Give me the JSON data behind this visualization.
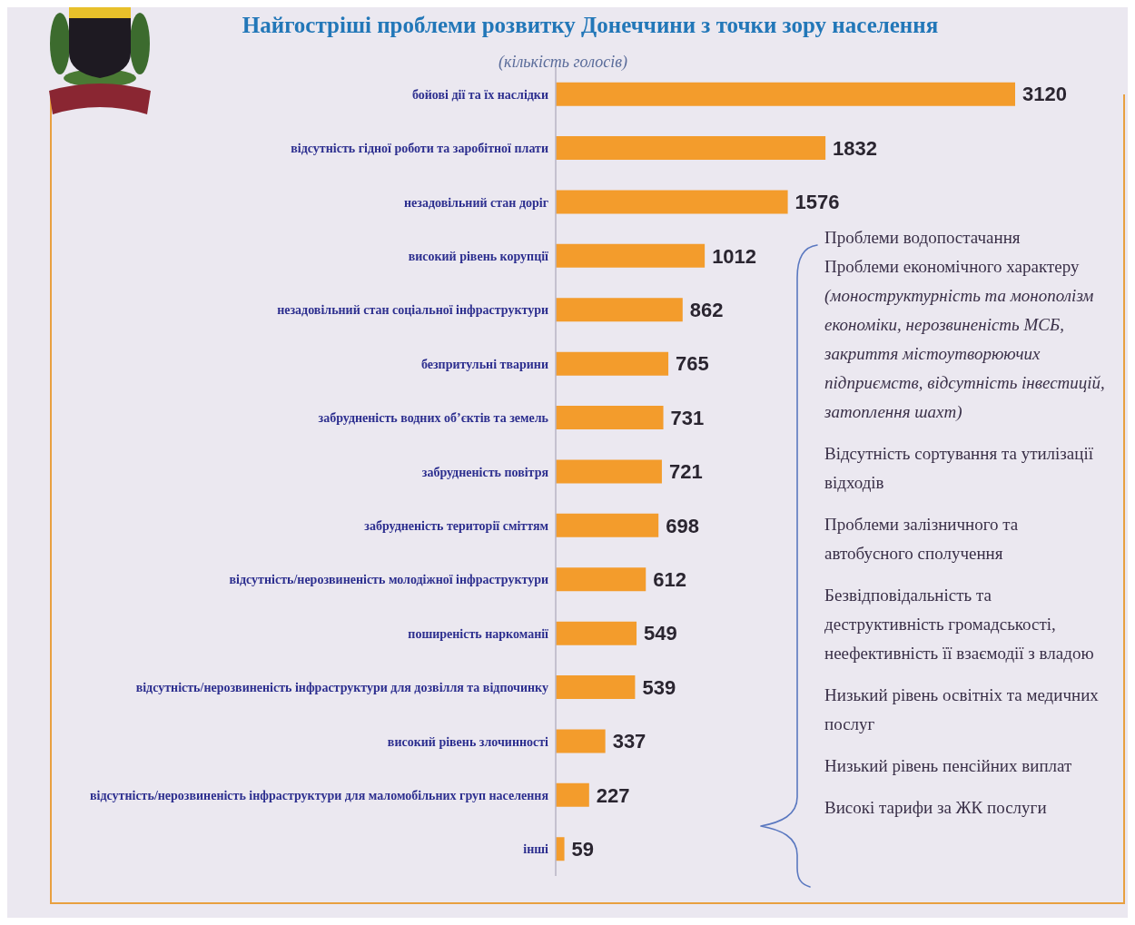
{
  "chart_data": {
    "type": "bar",
    "orientation": "horizontal",
    "title": "Найгостріші проблеми розвитку Донеччини з точки зору населення",
    "subtitle": "(кількість голосів)",
    "categories": [
      "бойові дії та їх наслідки",
      "відсутність гідної роботи та заробітної плати",
      "незадовільний стан доріг",
      "високий рівень корупції",
      "незадовільний стан соціальної інфраструктури",
      "безпритульні тварини",
      "забрудненість водних об’єктів та земель",
      "забрудненість повітря",
      "забрудненість території сміттям",
      "відсутність/нерозвиненість молодіжної інфраструктури",
      "поширеність наркоманії",
      "відсутність/нерозвиненість інфраструктури для дозвілля та відпочинку",
      "високий рівень злочинності",
      "відсутність/нерозвиненість інфраструктури для маломобільних груп населення",
      "інші"
    ],
    "values": [
      3120,
      1832,
      1576,
      1012,
      862,
      765,
      731,
      721,
      698,
      612,
      549,
      539,
      337,
      227,
      59
    ],
    "color": "#f39c2c",
    "data_labels": true,
    "annotations": [
      "Проблеми водопостачання",
      "Проблеми економічного характеру",
      "(моноструктурність та монополізм економіки, нерозвиненість МСБ, закриття містоутворюючих підприємств, відсутність інвестицій, затоплення шахт)",
      "Відсутність сортування та утилізації відходів",
      "Проблеми залізничного та автобусного сполучення",
      "Безвідповідальність та деструктивність громадськості, неефективність її взаємодії з владою",
      "Низький рівень освітніх та медичних послуг",
      "Низький рівень пенсійних виплат",
      "Високі тарифи за ЖК послуги"
    ]
  }
}
